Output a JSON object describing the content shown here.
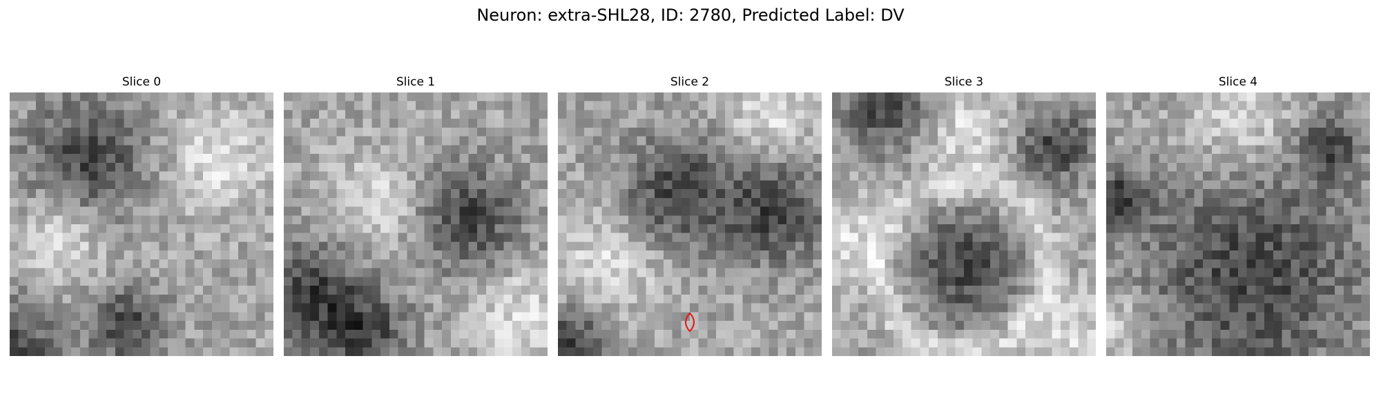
{
  "figure": {
    "title": "Neuron: extra-SHL28, ID: 2780, Predicted Label: DV"
  },
  "panels": [
    {
      "title": "Slice 0",
      "description": "noisy grayscale patch with dark cell body in upper-left",
      "dark_centers": [
        [
          0.3,
          0.25,
          0.16
        ],
        [
          0.45,
          0.88,
          0.1
        ],
        [
          0.0,
          1.0,
          0.15
        ]
      ],
      "light_centers": [
        [
          0.8,
          0.25,
          0.15
        ],
        [
          0.2,
          0.55,
          0.12
        ]
      ],
      "seed": 11,
      "marker": false
    },
    {
      "title": "Slice 1",
      "description": "noisy grayscale patch with dark cell body right of center and dark band lower-left",
      "dark_centers": [
        [
          0.7,
          0.48,
          0.14
        ],
        [
          0.1,
          0.75,
          0.14
        ],
        [
          0.3,
          0.92,
          0.12
        ]
      ],
      "light_centers": [
        [
          0.35,
          0.42,
          0.13
        ],
        [
          0.9,
          0.85,
          0.14
        ]
      ],
      "seed": 23,
      "marker": false
    },
    {
      "title": "Slice 2",
      "description": "noisy grayscale patch with two dark nuclei; red marker at center",
      "dark_centers": [
        [
          0.45,
          0.38,
          0.15
        ],
        [
          0.82,
          0.45,
          0.14
        ],
        [
          0.05,
          0.95,
          0.1
        ]
      ],
      "light_centers": [
        [
          0.2,
          0.65,
          0.14
        ],
        [
          0.8,
          0.1,
          0.12
        ]
      ],
      "seed": 37,
      "marker": true,
      "marker_color": "#e11d1d"
    },
    {
      "title": "Slice 3",
      "description": "grayscale patch with large round dark nucleus surrounded by light ring",
      "dark_centers": [
        [
          0.5,
          0.66,
          0.15
        ],
        [
          0.2,
          0.05,
          0.12
        ],
        [
          0.85,
          0.2,
          0.1
        ]
      ],
      "light_centers": [
        [
          0.05,
          0.55,
          0.12
        ],
        [
          0.5,
          0.15,
          0.12
        ],
        [
          0.9,
          0.9,
          0.1
        ]
      ],
      "seed": 51,
      "marker": false,
      "ring": true
    },
    {
      "title": "Slice 4",
      "description": "grayscale patch with large dark textured cell body filling lower portion",
      "dark_centers": [
        [
          0.55,
          0.7,
          0.3
        ],
        [
          0.85,
          0.2,
          0.08
        ],
        [
          0.05,
          0.4,
          0.08
        ]
      ],
      "light_centers": [
        [
          0.5,
          0.1,
          0.15
        ],
        [
          0.05,
          0.9,
          0.1
        ]
      ],
      "seed": 67,
      "marker": false
    }
  ]
}
